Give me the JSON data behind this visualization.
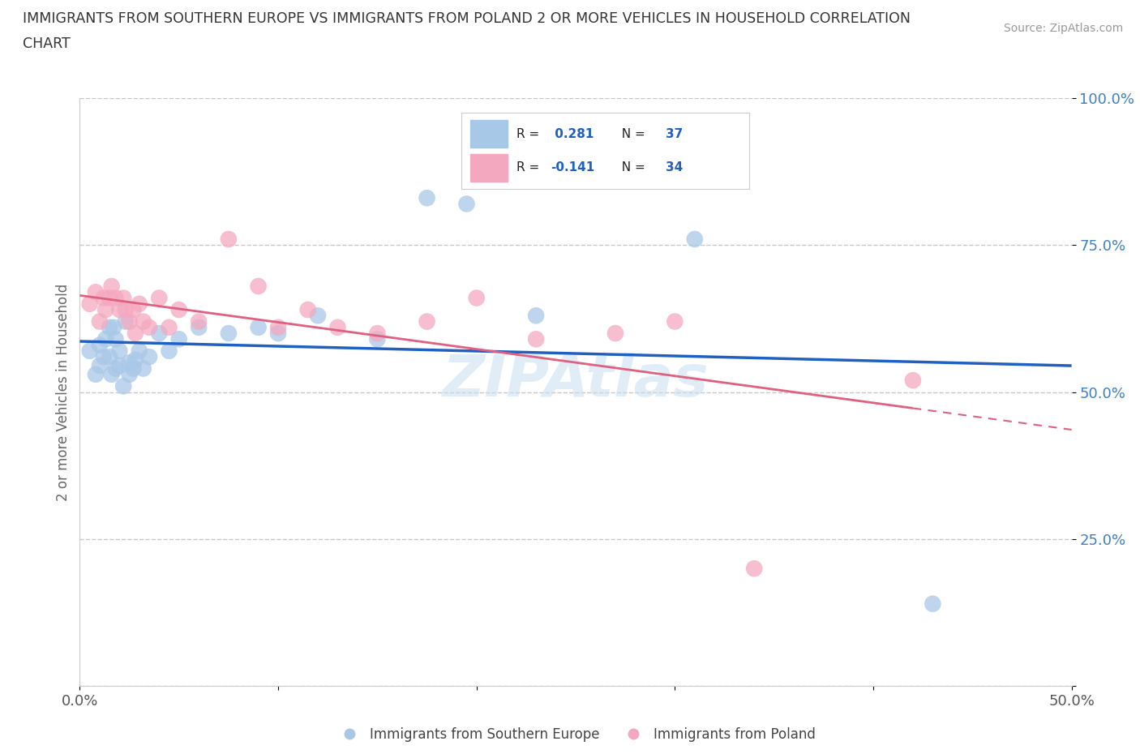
{
  "title_line1": "IMMIGRANTS FROM SOUTHERN EUROPE VS IMMIGRANTS FROM POLAND 2 OR MORE VEHICLES IN HOUSEHOLD CORRELATION",
  "title_line2": "CHART",
  "source": "Source: ZipAtlas.com",
  "ylabel": "2 or more Vehicles in Household",
  "xlim": [
    0.0,
    0.5
  ],
  "ylim": [
    0.0,
    1.0
  ],
  "blue_R": 0.281,
  "blue_N": 37,
  "pink_R": -0.141,
  "pink_N": 34,
  "blue_color": "#A8C8E8",
  "pink_color": "#F4A8C0",
  "blue_line_color": "#2060C0",
  "pink_line_color": "#E06080",
  "tick_label_color": "#4080C0",
  "legend_blue_label": "Immigrants from Southern Europe",
  "legend_pink_label": "Immigrants from Poland",
  "watermark": "ZIPAtlas",
  "background_color": "#FFFFFF",
  "grid_color": "#C8C8C8",
  "blue_x": [
    0.005,
    0.008,
    0.01,
    0.01,
    0.012,
    0.013,
    0.015,
    0.015,
    0.016,
    0.017,
    0.018,
    0.018,
    0.02,
    0.02,
    0.022,
    0.023,
    0.025,
    0.025,
    0.027,
    0.028,
    0.03,
    0.032,
    0.035,
    0.04,
    0.045,
    0.05,
    0.06,
    0.075,
    0.09,
    0.1,
    0.12,
    0.15,
    0.175,
    0.195,
    0.23,
    0.31,
    0.43
  ],
  "blue_y": [
    0.57,
    0.53,
    0.545,
    0.58,
    0.56,
    0.59,
    0.56,
    0.61,
    0.53,
    0.61,
    0.54,
    0.59,
    0.545,
    0.57,
    0.51,
    0.62,
    0.55,
    0.53,
    0.54,
    0.555,
    0.57,
    0.54,
    0.56,
    0.6,
    0.57,
    0.59,
    0.61,
    0.6,
    0.61,
    0.6,
    0.63,
    0.59,
    0.83,
    0.82,
    0.63,
    0.76,
    0.14
  ],
  "pink_x": [
    0.005,
    0.008,
    0.01,
    0.012,
    0.013,
    0.015,
    0.016,
    0.018,
    0.02,
    0.022,
    0.023,
    0.025,
    0.027,
    0.028,
    0.03,
    0.032,
    0.035,
    0.04,
    0.045,
    0.05,
    0.06,
    0.075,
    0.09,
    0.1,
    0.115,
    0.13,
    0.15,
    0.175,
    0.2,
    0.23,
    0.27,
    0.3,
    0.34,
    0.42
  ],
  "pink_y": [
    0.65,
    0.67,
    0.62,
    0.66,
    0.64,
    0.66,
    0.68,
    0.66,
    0.64,
    0.66,
    0.64,
    0.62,
    0.64,
    0.6,
    0.65,
    0.62,
    0.61,
    0.66,
    0.61,
    0.64,
    0.62,
    0.76,
    0.68,
    0.61,
    0.64,
    0.61,
    0.6,
    0.62,
    0.66,
    0.59,
    0.6,
    0.62,
    0.2,
    0.52
  ]
}
